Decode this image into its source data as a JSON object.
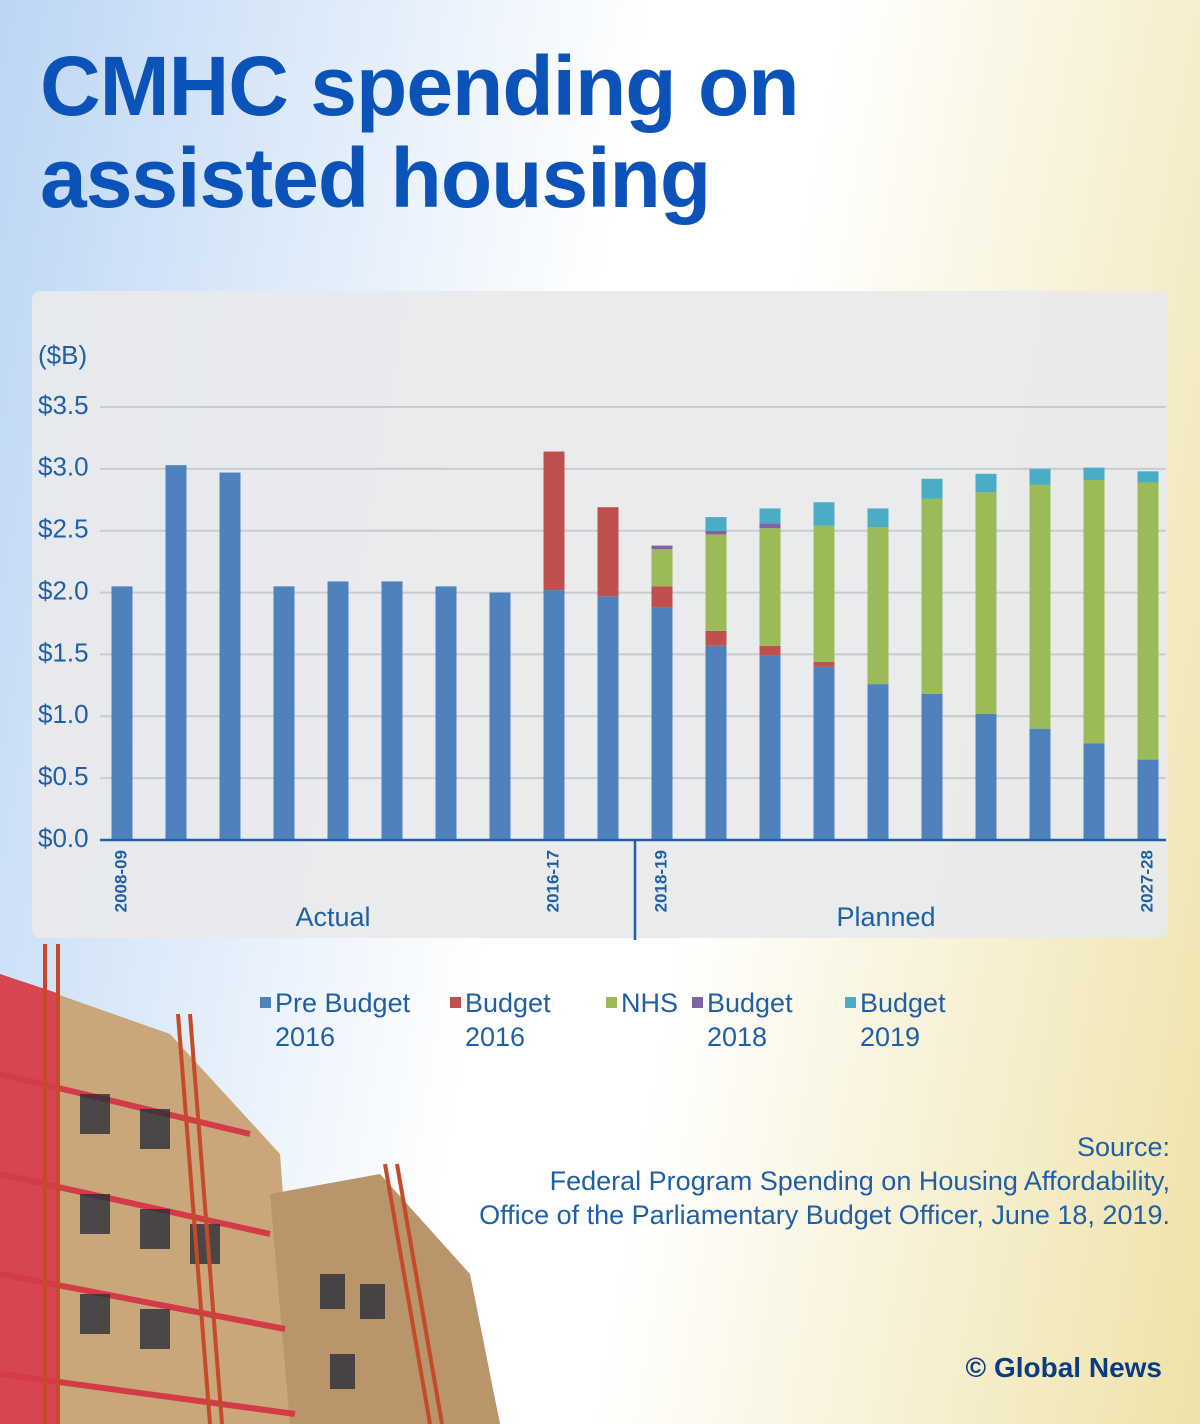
{
  "title": "CMHC spending on assisted housing",
  "chart_data": {
    "type": "stacked-bar",
    "y_unit": "($B)",
    "categories": [
      "2008-09",
      null,
      null,
      null,
      null,
      null,
      null,
      null,
      "2016-17",
      null,
      "2018-19",
      null,
      null,
      null,
      null,
      null,
      null,
      null,
      null,
      "2027-28"
    ],
    "annotations": [
      "Actual",
      "Planned"
    ],
    "series": [
      {
        "name": "Pre Budget 2016",
        "color": "#4f81bd",
        "values": [
          2.05,
          3.03,
          2.97,
          2.05,
          2.09,
          2.09,
          2.05,
          2.0,
          2.02,
          1.97,
          1.88,
          1.57,
          1.49,
          1.4,
          1.26,
          1.18,
          1.02,
          0.9,
          0.78,
          0.65
        ]
      },
      {
        "name": "Budget 2016",
        "color": "#c0504d",
        "values": [
          0,
          0,
          0,
          0,
          0,
          0,
          0,
          0,
          1.12,
          0.72,
          0.17,
          0.12,
          0.08,
          0.04,
          0,
          0,
          0,
          0,
          0,
          0
        ]
      },
      {
        "name": "NHS",
        "color": "#9bbb59",
        "values": [
          0,
          0,
          0,
          0,
          0,
          0,
          0,
          0,
          0,
          0,
          0.3,
          0.78,
          0.95,
          1.1,
          1.27,
          1.58,
          1.79,
          1.97,
          2.13,
          2.24
        ]
      },
      {
        "name": "Budget 2018",
        "color": "#8064a2",
        "values": [
          0,
          0,
          0,
          0,
          0,
          0,
          0,
          0,
          0,
          0,
          0.03,
          0.03,
          0.04,
          0,
          0,
          0,
          0,
          0,
          0,
          0
        ]
      },
      {
        "name": "Budget 2019",
        "color": "#4bacc6",
        "values": [
          0,
          0,
          0,
          0,
          0,
          0,
          0,
          0,
          0,
          0,
          0,
          0.11,
          0.12,
          0.19,
          0.15,
          0.16,
          0.15,
          0.13,
          0.1,
          0.09
        ]
      }
    ],
    "ylim": [
      0,
      3.5
    ],
    "yticks": [
      {
        "value": 0,
        "label": "$0.0"
      },
      {
        "value": 0.5,
        "label": "$0.5"
      },
      {
        "value": 1,
        "label": "$1.0"
      },
      {
        "value": 1.5,
        "label": "$1.5"
      },
      {
        "value": 2,
        "label": "$2.0"
      },
      {
        "value": 2.5,
        "label": "$2.5"
      },
      {
        "value": 3,
        "label": "$3.0"
      },
      {
        "value": 3.5,
        "label": "$3.5"
      }
    ],
    "grid": true
  },
  "source": [
    "Source:",
    "Federal Program Spending on Housing Affordability,",
    "Office of the Parliamentary Budget Officer, June 18, 2019."
  ],
  "credit": "© Global News"
}
